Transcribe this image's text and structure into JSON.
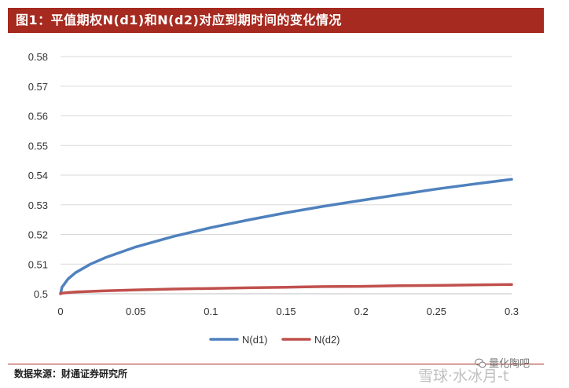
{
  "header": {
    "title": "图1：平值期权N(d1)和N(d2)对应到期时间的变化情况"
  },
  "footer": {
    "source": "数据来源：财通证券研究所"
  },
  "watermark": {
    "account": "量化陶吧",
    "site": "雪球·水冰月-t"
  },
  "colors": {
    "title_bg": "#a62a1f",
    "series1": "#4f81bd",
    "series2": "#c0504d",
    "grid": "#d9d9d9"
  },
  "chart_data": {
    "type": "line",
    "title": "",
    "xlabel": "",
    "ylabel": "",
    "xlim": [
      0,
      0.3
    ],
    "ylim": [
      0.5,
      0.58
    ],
    "x_ticks": [
      0,
      0.05,
      0.1,
      0.15,
      0.2,
      0.25,
      0.3
    ],
    "x_tick_labels": [
      "0",
      "0.05",
      "0.1",
      "0.15",
      "0.2",
      "0.25",
      "0.3"
    ],
    "y_ticks": [
      0.5,
      0.51,
      0.52,
      0.53,
      0.54,
      0.55,
      0.56,
      0.57,
      0.58
    ],
    "y_tick_labels": [
      "0.5",
      "0.51",
      "0.52",
      "0.53",
      "0.54",
      "0.55",
      "0.56",
      "0.57",
      "0.58"
    ],
    "grid": true,
    "legend_position": "bottom-center",
    "series": [
      {
        "name": "N(d1)",
        "color": "#4f81bd",
        "x": [
          0,
          0.001,
          0.005,
          0.01,
          0.02,
          0.03,
          0.05,
          0.075,
          0.1,
          0.125,
          0.15,
          0.175,
          0.2,
          0.225,
          0.25,
          0.275,
          0.3
        ],
        "y": [
          0.5,
          0.5022,
          0.505,
          0.5071,
          0.51,
          0.5122,
          0.5158,
          0.5193,
          0.5223,
          0.5249,
          0.5273,
          0.5295,
          0.5315,
          0.5334,
          0.5353,
          0.537,
          0.5386
        ]
      },
      {
        "name": "N(d2)",
        "color": "#c0504d",
        "x": [
          0,
          0.001,
          0.005,
          0.01,
          0.02,
          0.03,
          0.05,
          0.075,
          0.1,
          0.125,
          0.15,
          0.175,
          0.2,
          0.225,
          0.25,
          0.275,
          0.3
        ],
        "y": [
          0.5,
          0.5002,
          0.5004,
          0.5006,
          0.5008,
          0.501,
          0.5013,
          0.5016,
          0.5018,
          0.502,
          0.5022,
          0.5024,
          0.5025,
          0.5027,
          0.5028,
          0.503,
          0.5031
        ]
      }
    ]
  }
}
